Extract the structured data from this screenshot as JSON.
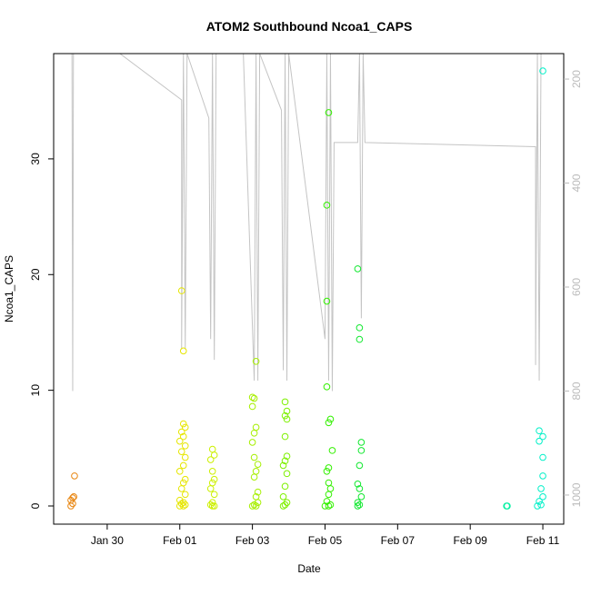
{
  "chart_data": {
    "type": "scatter",
    "title": "ATOM2 Southbound Ncoa1_CAPS",
    "x_label": "Date",
    "y_label": "Ncoa1_CAPS",
    "xlim": [
      28.525,
      42.575
    ],
    "xticks": [
      {
        "value": 30,
        "label": "Jan 30"
      },
      {
        "value": 32,
        "label": "Feb 01"
      },
      {
        "value": 34,
        "label": "Feb 03"
      },
      {
        "value": 36,
        "label": "Feb 05"
      },
      {
        "value": 38,
        "label": "Feb 07"
      },
      {
        "value": 40,
        "label": "Feb 09"
      },
      {
        "value": 42,
        "label": "Feb 11"
      }
    ],
    "ylim": [
      -1.57,
      39.1
    ],
    "yticks": [
      0,
      10,
      20,
      30
    ],
    "y2lim": [
      1056,
      151
    ],
    "y2ticks": [
      200,
      400,
      600,
      800,
      1000
    ],
    "y2color": "#bbbbbb",
    "series": [
      {
        "type": "line",
        "axis": "y2",
        "color": "#c4c4c4",
        "x": [
          29.03,
          29.05,
          29.07,
          30.35,
          32.05,
          32.05,
          32.1,
          32.15,
          32.2,
          32.8,
          32.85,
          32.9,
          32.95,
          33.0,
          33.75,
          34.05,
          34.1,
          34.15,
          34.2,
          34.8,
          34.85,
          34.9,
          34.95,
          35.0,
          36.0,
          36.05,
          36.1,
          36.15,
          36.2,
          36.25,
          36.9,
          36.95,
          37.0,
          37.05,
          37.1,
          41.8,
          41.8,
          41.85,
          41.9,
          41.95
        ],
        "values": [
          151,
          800,
          151,
          151,
          240,
          720,
          151,
          720,
          151,
          275,
          700,
          151,
          740,
          151,
          151,
          780,
          151,
          780,
          151,
          260,
          760,
          151,
          780,
          151,
          700,
          151,
          780,
          151,
          800,
          322,
          322,
          151,
          660,
          151,
          322,
          330,
          750,
          151,
          780,
          151
        ]
      },
      {
        "type": "scatter",
        "color": "#e8850f",
        "x": [
          29.0,
          29.05,
          29.0,
          29.05,
          29.08,
          29.1
        ],
        "values": [
          0,
          0.2,
          0.5,
          0.7,
          0.8,
          2.6
        ]
      },
      {
        "type": "scatter",
        "color": "#e6e600",
        "x": [
          32.0,
          32.1,
          32.15,
          32.05,
          32.1,
          32.0,
          32.15,
          32.05,
          32.1,
          32.15,
          32.0,
          32.1,
          32.15,
          32.05,
          32.15,
          32.0,
          32.1,
          32.05,
          32.15,
          32.1,
          32.1,
          32.05
        ],
        "values": [
          0,
          0,
          0.1,
          0.2,
          0.3,
          0.5,
          1.0,
          1.5,
          2.0,
          2.3,
          3.0,
          3.5,
          4.2,
          4.7,
          5.2,
          5.6,
          6.0,
          6.4,
          6.8,
          7.1,
          13.4,
          18.6
        ]
      },
      {
        "type": "scatter",
        "color": "#ccf000",
        "x": [
          32.9,
          32.95,
          32.85,
          32.9,
          32.95,
          32.85,
          32.9,
          32.95,
          32.9,
          32.85,
          32.95,
          32.9
        ],
        "values": [
          0,
          0,
          0.1,
          0.3,
          1.0,
          1.5,
          2.0,
          2.3,
          3.0,
          4.0,
          4.4,
          4.9
        ]
      },
      {
        "type": "scatter",
        "color": "#a6ef00",
        "x": [
          34.0,
          34.1,
          34.05,
          34.15,
          34.1,
          34.15,
          34.05,
          34.1,
          34.15,
          34.05,
          34.0,
          34.05,
          34.1,
          34.0,
          34.05,
          34.0,
          34.1
        ],
        "values": [
          0,
          0,
          0.1,
          0.3,
          0.8,
          1.2,
          2.5,
          3.0,
          3.6,
          4.2,
          5.5,
          6.3,
          6.8,
          8.6,
          9.3,
          9.4,
          12.5
        ]
      },
      {
        "type": "scatter",
        "color": "#7ef000",
        "x": [
          34.85,
          34.9,
          34.95,
          34.85,
          34.9,
          34.95,
          34.85,
          34.9,
          34.95,
          34.9,
          34.95,
          34.9,
          34.95,
          34.9
        ],
        "values": [
          0,
          0.1,
          0.3,
          0.8,
          1.7,
          2.8,
          3.5,
          3.9,
          4.3,
          6.0,
          7.5,
          7.8,
          8.2,
          9.0
        ]
      },
      {
        "type": "scatter",
        "color": "#33f000",
        "x": [
          36.0,
          36.1,
          36.15,
          36.05,
          36.1,
          36.15,
          36.1,
          36.05,
          36.1,
          36.2,
          36.1,
          36.15,
          36.05,
          36.05,
          36.05,
          36.1
        ],
        "values": [
          0,
          0,
          0.1,
          0.4,
          1.0,
          1.5,
          2.0,
          3.0,
          3.3,
          4.8,
          7.2,
          7.5,
          10.3,
          17.7,
          26.0,
          34.0
        ]
      },
      {
        "type": "scatter",
        "color": "#12e830",
        "x": [
          36.9,
          36.95,
          36.9,
          37.0,
          36.95,
          36.9,
          36.95,
          37.0,
          37.0,
          36.95,
          36.95,
          36.9
        ],
        "values": [
          0,
          0.1,
          0.3,
          0.8,
          1.5,
          1.9,
          3.5,
          4.8,
          5.5,
          14.4,
          15.4,
          20.5
        ]
      },
      {
        "type": "scatter",
        "color": "#00f0a0",
        "x": [
          41.0,
          41.02
        ],
        "values": [
          0,
          0
        ]
      },
      {
        "type": "scatter",
        "color": "#00f0c8",
        "x": [
          41.85,
          41.95,
          41.9,
          42.0,
          41.95,
          42.0,
          42.0,
          41.9,
          42.0,
          41.9,
          42.0
        ],
        "values": [
          0,
          0.1,
          0.4,
          0.8,
          1.5,
          2.6,
          4.2,
          5.6,
          6.0,
          6.5,
          37.6
        ]
      }
    ]
  }
}
